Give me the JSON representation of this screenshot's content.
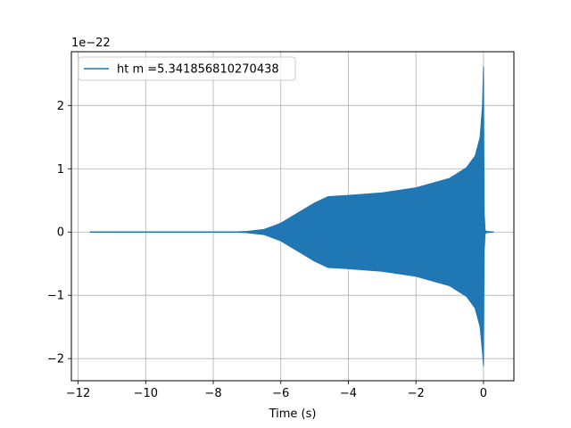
{
  "chart_data": {
    "type": "line",
    "title": "",
    "xlabel": "Time (s)",
    "ylabel": "",
    "y_offset_text": "1e−22",
    "xlim": [
      -12.2,
      0.9
    ],
    "ylim": [
      -2.35,
      2.85
    ],
    "grid": true,
    "legend_position": "upper-left",
    "x_ticks": [
      -12,
      -10,
      -8,
      -6,
      -4,
      -2,
      0
    ],
    "x_tick_labels": [
      "−12",
      "−10",
      "−8",
      "−6",
      "−4",
      "−2",
      "0"
    ],
    "y_ticks": [
      -2,
      -1,
      0,
      1,
      2
    ],
    "y_tick_labels": [
      "−2",
      "−1",
      "0",
      "1",
      "2"
    ],
    "series": [
      {
        "name": "ht m =5.341856810270438",
        "color": "#1f77b4",
        "x_start": -11.65,
        "x_end": 0.3,
        "envelope": {
          "x": [
            -11.65,
            -7.5,
            -7.0,
            -6.5,
            -6.0,
            -5.5,
            -5.0,
            -4.6,
            -4.0,
            -3.0,
            -2.0,
            -1.0,
            -0.5,
            -0.25,
            -0.1,
            -0.03,
            0.0,
            0.02,
            0.05,
            0.1,
            0.3
          ],
          "upper": [
            0.0,
            0.0,
            0.01,
            0.04,
            0.14,
            0.3,
            0.46,
            0.56,
            0.58,
            0.62,
            0.7,
            0.85,
            1.02,
            1.2,
            1.5,
            2.0,
            2.62,
            0.3,
            0.02,
            0.01,
            0.0
          ],
          "lower": [
            0.0,
            0.0,
            -0.01,
            -0.04,
            -0.14,
            -0.3,
            -0.46,
            -0.56,
            -0.58,
            -0.62,
            -0.7,
            -0.85,
            -1.02,
            -1.2,
            -1.5,
            -1.9,
            -2.12,
            -0.3,
            -0.02,
            -0.01,
            0.0
          ]
        }
      }
    ]
  }
}
